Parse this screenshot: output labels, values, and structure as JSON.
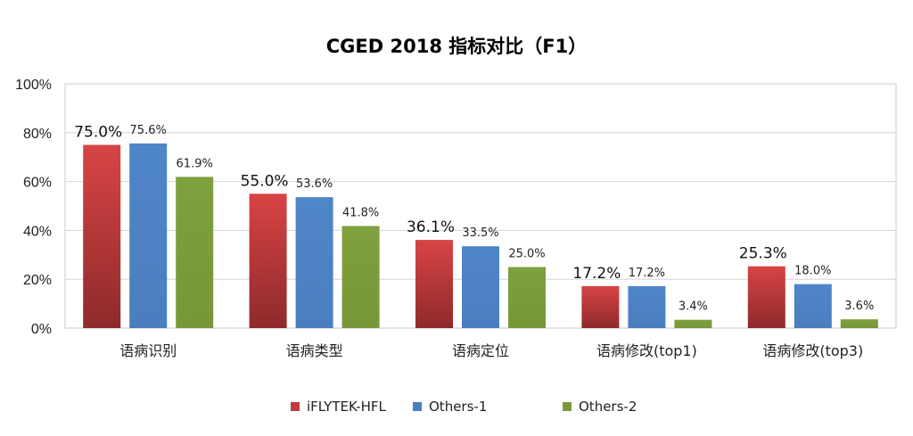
{
  "chart_data": {
    "type": "bar",
    "title": "CGED 2018 指标对比（F1）",
    "xlabel": "",
    "ylabel": "",
    "ylim": [
      0,
      100
    ],
    "yticks": [
      "0%",
      "20%",
      "40%",
      "60%",
      "80%",
      "100%"
    ],
    "grid": true,
    "legend_position": "bottom",
    "categories": [
      "语病识别",
      "语病类型",
      "语病定位",
      "语病修改(top1)",
      "语病修改(top3)"
    ],
    "series": [
      {
        "name": "iFLYTEK-HFL",
        "color": "#c0393b",
        "values": [
          75.0,
          55.0,
          36.1,
          17.2,
          25.3
        ],
        "labels": [
          "75.0%",
          "55.0%",
          "36.1%",
          "17.2%",
          "25.3%"
        ]
      },
      {
        "name": "Others-1",
        "color": "#4a7ebf",
        "values": [
          75.6,
          53.6,
          33.5,
          17.2,
          18.0
        ],
        "labels": [
          "75.6%",
          "53.6%",
          "33.5%",
          "17.2%",
          "18.0%"
        ]
      },
      {
        "name": "Others-2",
        "color": "#7a9a3a",
        "values": [
          61.9,
          41.8,
          25.0,
          3.4,
          3.6
        ],
        "labels": [
          "61.9%",
          "41.8%",
          "25.0%",
          "3.4%",
          "3.6%"
        ]
      }
    ]
  }
}
